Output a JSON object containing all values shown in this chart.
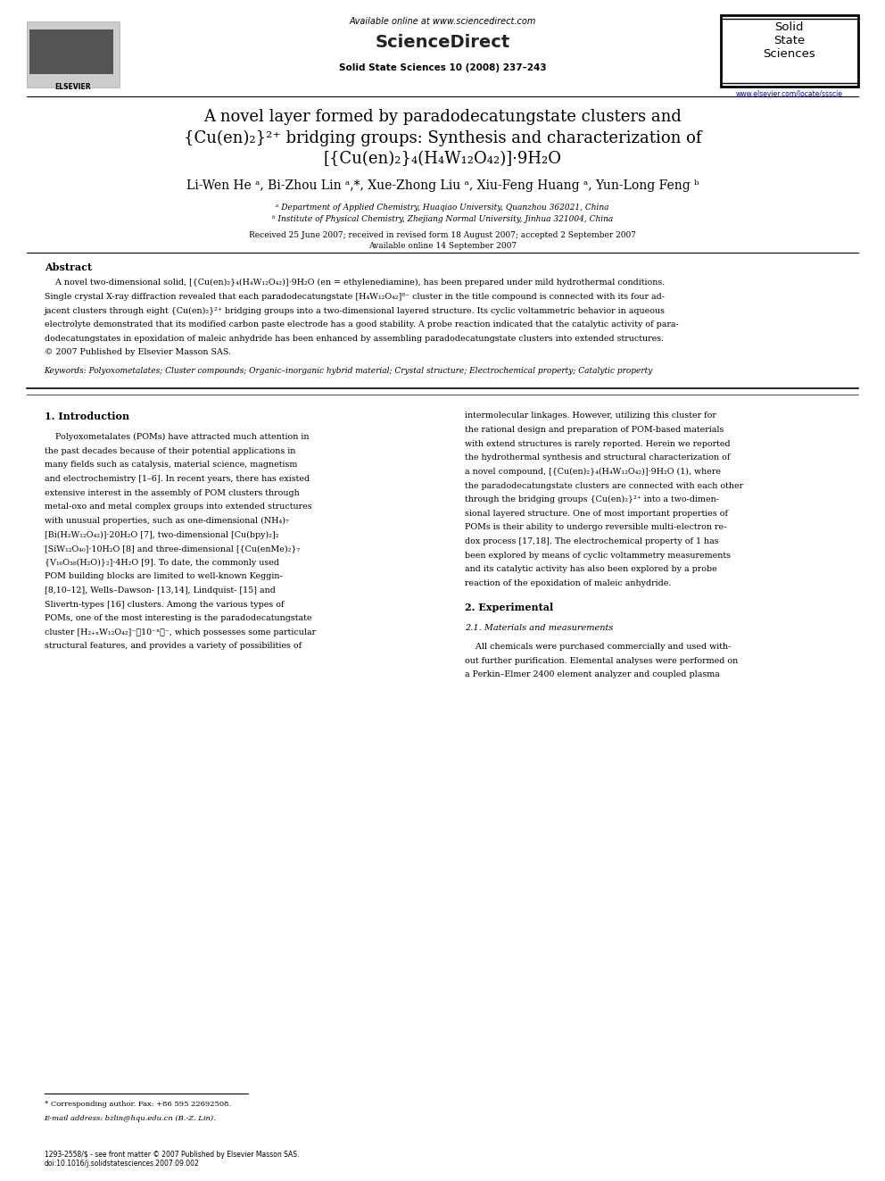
{
  "background_color": "#ffffff",
  "page_width": 9.92,
  "page_height": 13.23,
  "header_available": "Available online at www.sciencedirect.com",
  "header_sciencedirect": "ScienceDirect",
  "header_journal": "Solid State Sciences 10 (2008) 237–243",
  "header_url": "www.elsevier.com/locate/ssscie",
  "header_solid_state": "Solid\nState\nSciences",
  "title_line1": "A novel layer formed by paradodecatungstate clusters and",
  "title_line2": "{Cu(en)₂}²⁺ bridging groups: Synthesis and characterization of",
  "title_line3": "[{Cu(en)₂}₄(H₄W₁₂O₄₂)]·9H₂O",
  "authors": "Li-Wen He ᵃ, Bi-Zhou Lin ᵃ,*, Xue-Zhong Liu ᵃ, Xiu-Feng Huang ᵃ, Yun-Long Feng ᵇ",
  "affiliation_a": "ᵃ Department of Applied Chemistry, Huaqiao University, Quanzhou 362021, China",
  "affiliation_b": "ᵇ Institute of Physical Chemistry, Zhejiang Normal University, Jinhua 321004, China",
  "received_text": "Received 25 June 2007; received in revised form 18 August 2007; accepted 2 September 2007",
  "available_online_date": "Available online 14 September 2007",
  "abstract_title": "Abstract",
  "abstract_lines": [
    "    A novel two-dimensional solid, [{Cu(en)₂}₄(H₄W₁₂O₄₂)]·9H₂O (en = ethylenediamine), has been prepared under mild hydrothermal conditions.",
    "Single crystal X-ray diffraction revealed that each paradodecatungstate [H₄W₁₂O₄₂]⁸⁻ cluster in the title compound is connected with its four ad-",
    "jacent clusters through eight {Cu(en)₂}²⁺ bridging groups into a two-dimensional layered structure. Its cyclic voltammetric behavior in aqueous",
    "electrolyte demonstrated that its modified carbon paste electrode has a good stability. A probe reaction indicated that the catalytic activity of para-",
    "dodecatungstates in epoxidation of maleic anhydride has been enhanced by assembling paradodecatungstate clusters into extended structures.",
    "© 2007 Published by Elsevier Masson SAS."
  ],
  "keywords_text": "Keywords: Polyoxometalates; Cluster compounds; Organic–inorganic hybrid material; Crystal structure; Electrochemical property; Catalytic property",
  "section1_title": "1. Introduction",
  "intro_col1_lines": [
    "    Polyoxometalates (POMs) have attracted much attention in",
    "the past decades because of their potential applications in",
    "many fields such as catalysis, material science, magnetism",
    "and electrochemistry [1–6]. In recent years, there has existed",
    "extensive interest in the assembly of POM clusters through",
    "metal-oxo and metal complex groups into extended structures",
    "with unusual properties, such as one-dimensional (NH₄)₇",
    "[Bi(H₂W₁₂O₄₂)]·20H₂O [7], two-dimensional [Cu(bpy)₂]₂",
    "[SiW₁₂O₄₀]·10H₂O [8] and three-dimensional [{Cu(enMe)₂}₇",
    "{V₁₆O₃₈(H₂O)}₂]·4H₂O [9]. To date, the commonly used",
    "POM building blocks are limited to well-known Keggin-",
    "[8,10–12], Wells–Dawson- [13,14], Lindquist- [15] and",
    "Slivertn-types [16] clusters. Among the various types of",
    "POMs, one of the most interesting is the paradodecatungstate",
    "cluster [H₂₊ₓW₁₂O₄₂]⁻（10⁻ˣ）⁻, which possesses some particular",
    "structural features, and provides a variety of possibilities of"
  ],
  "intro_col2_lines": [
    "intermolecular linkages. However, utilizing this cluster for",
    "the rational design and preparation of POM-based materials",
    "with extend structures is rarely reported. Herein we reported",
    "the hydrothermal synthesis and structural characterization of",
    "a novel compound, [{Cu(en)₂}₄(H₄W₁₂O₄₂)]·9H₂O (1), where",
    "the paradodecatungstate clusters are connected with each other",
    "through the bridging groups {Cu(en)₂}²⁺ into a two-dimen-",
    "sional layered structure. One of most important properties of",
    "POMs is their ability to undergo reversible multi-electron re-",
    "dox process [17,18]. The electrochemical property of 1 has",
    "been explored by means of cyclic voltammetry measurements",
    "and its catalytic activity has also been explored by a probe",
    "reaction of the epoxidation of maleic anhydride."
  ],
  "section2_title": "2. Experimental",
  "section2_sub": "2.1. Materials and measurements",
  "section2_lines": [
    "    All chemicals were purchased commercially and used with-",
    "out further purification. Elemental analyses were performed on",
    "a Perkin–Elmer 2400 element analyzer and coupled plasma"
  ],
  "footnote_star": "* Corresponding author. Fax: +86 595 22692508.",
  "footnote_email": "E-mail address: bzlin@hqu.edu.cn (B.-Z. Lin).",
  "footer_line1": "1293-2558/$ - see front matter © 2007 Published by Elsevier Masson SAS.",
  "footer_line2": "doi:10.1016/j.solidstatesciences.2007.09.002"
}
